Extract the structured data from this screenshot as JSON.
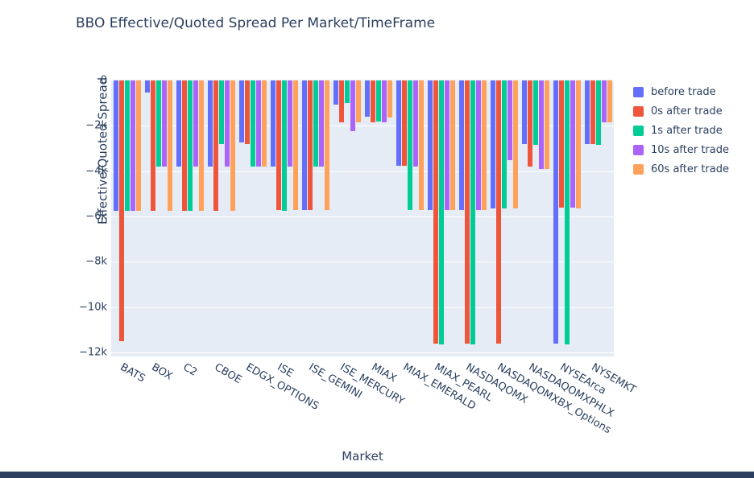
{
  "title": "BBO Effective/Quoted Spread Per Market/TimeFrame",
  "chart_data": {
    "type": "bar",
    "title": "BBO Effective/Quoted Spread Per Market/TimeFrame",
    "xlabel": "Market",
    "ylabel": "Effective/Quoted Spread",
    "ylim": [
      -12000,
      0
    ],
    "grid": true,
    "legend_position": "right",
    "plot_bg_color": "#e5ecf6",
    "grid_color": "#ffffff",
    "text_color": "#2a3f5f",
    "yticks": [
      0,
      -2000,
      -4000,
      -6000,
      -8000,
      -10000,
      -12000
    ],
    "ytick_labels": [
      "0",
      "−2k",
      "−4k",
      "−6k",
      "−8k",
      "−10k",
      "−12k"
    ],
    "categories": [
      "BATS",
      "BOX",
      "C2",
      "CBOE",
      "EDGX_OPTIONS",
      "ISE",
      "ISE_GEMINI",
      "ISE_MERCURY",
      "MIAX",
      "MIAX_EMERALD",
      "MIAX_PEARL",
      "NASDAQOMX",
      "NASDAQOMXBX_Options",
      "NASDAQOMXPHLX",
      "NYSEArca",
      "NYSEMKT"
    ],
    "series": [
      {
        "name": "before trade",
        "color": "#636efa",
        "values": [
          -5750,
          -550,
          -3800,
          -3800,
          -2750,
          -3800,
          -5700,
          -1050,
          -1600,
          -3750,
          -5700,
          -5700,
          -5650,
          -2800,
          -11600,
          -2800
        ]
      },
      {
        "name": "0s after trade",
        "color": "#ef553b",
        "values": [
          -11500,
          -5750,
          -5750,
          -5750,
          -2800,
          -5700,
          -5700,
          -1850,
          -1850,
          -3750,
          -11600,
          -11600,
          -11600,
          -3800,
          -5600,
          -2800
        ]
      },
      {
        "name": "1s after trade",
        "color": "#00cc96",
        "values": [
          -5750,
          -3800,
          -5750,
          -2800,
          -3800,
          -5750,
          -3800,
          -1000,
          -1800,
          -5700,
          -11650,
          -11650,
          -5650,
          -2850,
          -11650,
          -2850
        ]
      },
      {
        "name": "10s after trade",
        "color": "#ab63fa",
        "values": [
          -5750,
          -3800,
          -3800,
          -3800,
          -3800,
          -3800,
          -3800,
          -2250,
          -1850,
          -3800,
          -5700,
          -5700,
          -3500,
          -3900,
          -5600,
          -1850
        ]
      },
      {
        "name": "60s after trade",
        "color": "#ffa15a",
        "values": [
          -5750,
          -5750,
          -5750,
          -5750,
          -3800,
          -5700,
          -5700,
          -1850,
          -1650,
          -5700,
          -5700,
          -5700,
          -5650,
          -3900,
          -5650,
          -1850
        ]
      }
    ]
  }
}
